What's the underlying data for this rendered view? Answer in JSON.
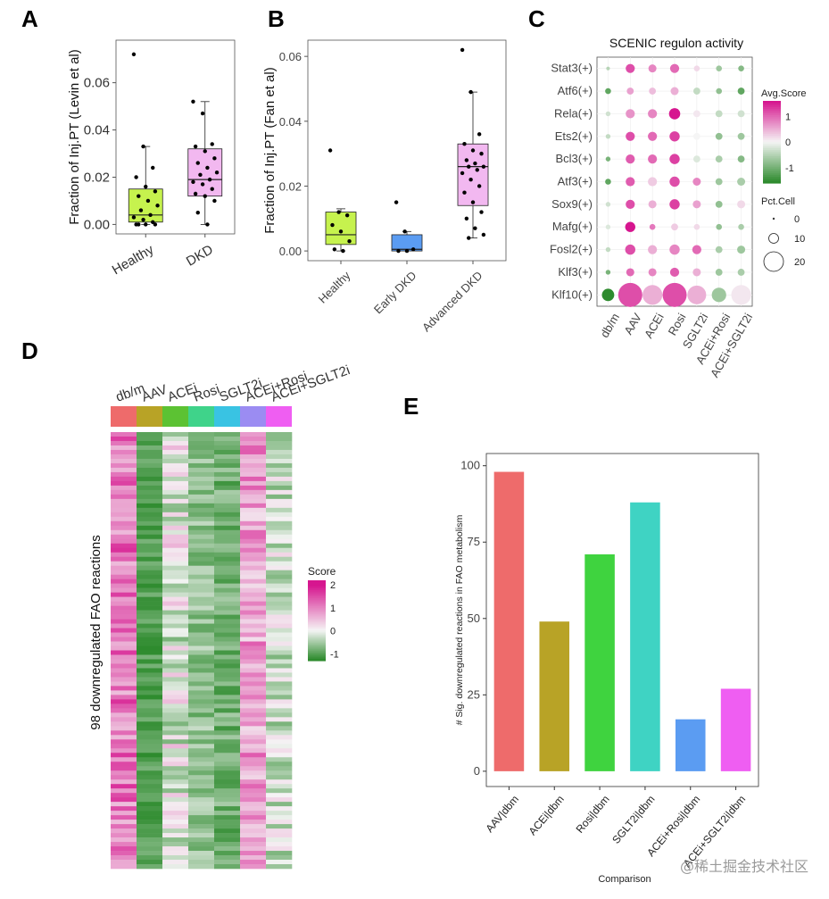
{
  "panels": {
    "A": "A",
    "B": "B",
    "C": "C",
    "D": "D",
    "E": "E"
  },
  "colors": {
    "lime": "#c6f24e",
    "pink": "#f2b8f0",
    "blue": "#5b9cf2",
    "green": "#2e8b2e",
    "magenta": "#d6168f"
  },
  "chart_data": [
    {
      "id": "A",
      "type": "box",
      "ylabel": "Fraction of Inj.PT (Levin et al)",
      "categories": [
        "Healthy",
        "DKD"
      ],
      "ylim": [
        -0.004,
        0.078
      ],
      "yticks": [
        0.0,
        0.02,
        0.04,
        0.06
      ],
      "ytick_labels": [
        "0.00",
        "0.02",
        "0.04",
        "0.06"
      ],
      "box_colors": [
        "#c6f24e",
        "#f2b8f0"
      ],
      "boxes": [
        {
          "min": 0.0,
          "q1": 0.001,
          "median": 0.004,
          "q3": 0.015,
          "max": 0.033
        },
        {
          "min": 0.0,
          "q1": 0.012,
          "median": 0.019,
          "q3": 0.032,
          "max": 0.052
        }
      ],
      "points": [
        [
          0.072,
          0.033,
          0.024,
          0.02,
          0.016,
          0.014,
          0.012,
          0.01,
          0.008,
          0.006,
          0.004,
          0.003,
          0.002,
          0.001,
          0.0,
          0.0,
          0.0,
          0.0
        ],
        [
          0.052,
          0.047,
          0.034,
          0.033,
          0.031,
          0.028,
          0.026,
          0.024,
          0.022,
          0.021,
          0.019,
          0.018,
          0.017,
          0.015,
          0.013,
          0.012,
          0.01,
          0.005,
          0.0
        ]
      ]
    },
    {
      "id": "B",
      "type": "box",
      "ylabel": "Fraction of Inj.PT (Fan et al)",
      "categories": [
        "Healthy",
        "Early DKD",
        "Advanced DKD"
      ],
      "ylim": [
        -0.003,
        0.065
      ],
      "yticks": [
        0.0,
        0.02,
        0.04,
        0.06
      ],
      "ytick_labels": [
        "0.00",
        "0.02",
        "0.04",
        "0.06"
      ],
      "box_colors": [
        "#c6f24e",
        "#5b9cf2",
        "#f2b8f0"
      ],
      "boxes": [
        {
          "min": 0.0,
          "q1": 0.002,
          "median": 0.005,
          "q3": 0.012,
          "max": 0.013
        },
        {
          "min": 0.0,
          "q1": 0.0,
          "median": 0.0005,
          "q3": 0.005,
          "max": 0.006
        },
        {
          "min": 0.004,
          "q1": 0.014,
          "median": 0.026,
          "q3": 0.033,
          "max": 0.049
        }
      ],
      "points": [
        [
          0.031,
          0.012,
          0.011,
          0.008,
          0.006,
          0.003,
          0.0005,
          0.0
        ],
        [
          0.015,
          0.006,
          0.0005,
          0.0,
          0.0
        ],
        [
          0.062,
          0.049,
          0.036,
          0.033,
          0.031,
          0.03,
          0.028,
          0.027,
          0.026,
          0.026,
          0.025,
          0.024,
          0.022,
          0.02,
          0.018,
          0.015,
          0.012,
          0.01,
          0.007,
          0.005,
          0.004
        ]
      ]
    },
    {
      "id": "C",
      "type": "dotplot",
      "title": "SCENIC regulon activity",
      "rows": [
        "Stat3(+)",
        "Atf6(+)",
        "Rela(+)",
        "Ets2(+)",
        "Bcl3(+)",
        "Atf3(+)",
        "Sox9(+)",
        "Mafg(+)",
        "Fosl2(+)",
        "Klf3(+)",
        "Klf10(+)"
      ],
      "cols": [
        "db/m",
        "AAV",
        "ACEi",
        "Rosi",
        "SGLT2i",
        "ACEi+Rosi",
        "ACEi+SGLT2i"
      ],
      "legend_color_title": "Avg.Score",
      "legend_color_ticks": [
        1,
        0,
        -1
      ],
      "legend_color_tick_labels": [
        "1",
        "0",
        "-1"
      ],
      "legend_size_title": "Pct.Cell",
      "legend_size_values": [
        0,
        10,
        20
      ],
      "legend_size_labels": [
        "0",
        "10",
        "20"
      ],
      "score": [
        [
          -0.5,
          1.2,
          0.8,
          1.0,
          0.2,
          -0.7,
          -0.9
        ],
        [
          -1.2,
          0.6,
          0.4,
          0.5,
          -0.4,
          -0.8,
          -1.2
        ],
        [
          -0.3,
          0.7,
          0.8,
          1.6,
          0.1,
          -0.4,
          -0.3
        ],
        [
          -0.4,
          1.2,
          1.0,
          1.3,
          0.0,
          -0.8,
          -0.7
        ],
        [
          -1.0,
          1.1,
          1.0,
          1.3,
          -0.2,
          -0.6,
          -0.9
        ],
        [
          -1.2,
          1.1,
          0.3,
          1.2,
          0.8,
          -0.7,
          -0.6
        ],
        [
          -0.3,
          1.2,
          0.5,
          1.3,
          0.6,
          -0.8,
          0.2
        ],
        [
          -0.2,
          1.6,
          0.9,
          0.3,
          0.2,
          -0.8,
          -0.6
        ],
        [
          -0.4,
          1.2,
          0.5,
          0.8,
          1.0,
          -0.6,
          -0.7
        ],
        [
          -1.0,
          1.0,
          0.8,
          1.1,
          0.5,
          -0.7,
          -0.6
        ],
        [
          -1.6,
          1.2,
          0.5,
          1.2,
          0.5,
          -0.7,
          0.1
        ]
      ],
      "pct": [
        [
          1,
          6,
          5,
          6,
          3,
          3,
          3
        ],
        [
          3,
          4,
          4,
          5,
          4,
          3,
          4
        ],
        [
          2,
          6,
          6,
          8,
          4,
          4,
          4
        ],
        [
          2,
          6,
          6,
          7,
          4,
          4,
          4
        ],
        [
          2,
          6,
          6,
          7,
          4,
          4,
          4
        ],
        [
          3,
          6,
          6,
          7,
          5,
          4,
          5
        ],
        [
          2,
          6,
          5,
          7,
          5,
          4,
          5
        ],
        [
          2,
          7,
          3,
          4,
          3,
          3,
          3
        ],
        [
          2,
          7,
          6,
          7,
          6,
          4,
          5
        ],
        [
          2,
          5,
          5,
          6,
          5,
          4,
          4
        ],
        [
          9,
          20,
          16,
          20,
          15,
          11,
          16
        ]
      ]
    },
    {
      "id": "D",
      "type": "heatmap",
      "ylabel": "98 downregulated FAO reactions",
      "cols": [
        "db/m",
        "AAV",
        "ACEi",
        "Rosi",
        "SGLT2i",
        "ACEi+Rosi",
        "ACEi+SGLT2i"
      ],
      "header_colors": [
        "#ee6b6b",
        "#b8a326",
        "#5cc233",
        "#3fd38a",
        "#39c3e3",
        "#9b8cf2",
        "#ef5ef2"
      ],
      "legend_title": "Score",
      "legend_ticks": [
        2,
        1,
        0,
        -1
      ],
      "legend_tick_labels": [
        "2",
        "1",
        "0",
        "-1"
      ],
      "n_rows": 98,
      "profile": {
        "db/m": [
          0.5,
          1.8
        ],
        "AAV": [
          -1.3,
          -0.8
        ],
        "ACEi": [
          -0.8,
          0.6
        ],
        "Rosi": [
          -1.0,
          -0.3
        ],
        "SGLT2i": [
          -1.2,
          -0.5
        ],
        "ACEi+Rosi": [
          0.2,
          1.4
        ],
        "ACEi+SGLT2i": [
          -0.8,
          0.3
        ]
      }
    },
    {
      "id": "E",
      "type": "bar",
      "xlabel": "Comparison",
      "ylabel": "# Sig. downregulated reactions in FAO metabolism",
      "categories": [
        "AAV|dbm",
        "ACEi|dbm",
        "Rosi|dbm",
        "SGLT2i|dbm",
        "ACEi+Rosi|dbm",
        "ACEi+SGLT2i|dbm"
      ],
      "values": [
        98,
        49,
        71,
        88,
        17,
        27
      ],
      "colors": [
        "#ee6b6b",
        "#b8a326",
        "#3fd33f",
        "#3fd3c3",
        "#5b9cf2",
        "#ef5ef2"
      ],
      "ylim": [
        -5,
        104
      ],
      "yticks": [
        0,
        25,
        50,
        75,
        100
      ],
      "ytick_labels": [
        "0",
        "25",
        "50",
        "75",
        "100"
      ]
    }
  ],
  "watermark": "@稀土掘金技术社区"
}
